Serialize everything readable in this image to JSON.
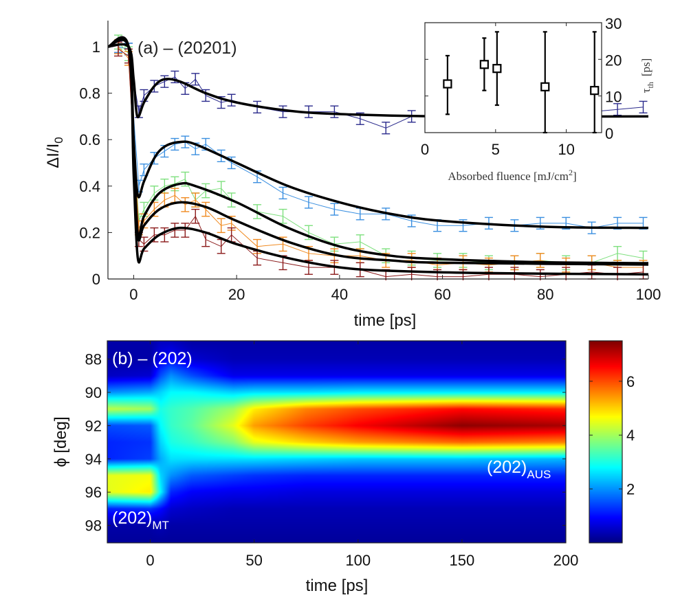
{
  "chart_data": [
    {
      "type": "line",
      "panel_label": "(a) – (20201)",
      "xlabel": "time [ps]",
      "ylabel": "ΔI/I",
      "ylabel_sub": "0",
      "xlim": [
        -5,
        100
      ],
      "ylim": [
        0,
        1.1
      ],
      "xticks": [
        0,
        20,
        40,
        60,
        80,
        100
      ],
      "yticks": [
        0,
        0.2,
        0.4,
        0.6,
        0.8,
        1
      ],
      "grid": false,
      "x": [
        -3,
        -1,
        1,
        2,
        4,
        6,
        8,
        10,
        12,
        14,
        17,
        19,
        24,
        29,
        34,
        39,
        44,
        49,
        54,
        59,
        64,
        69,
        74,
        79,
        84,
        89,
        94,
        99
      ],
      "series": [
        {
          "color": "#2a2a8c",
          "error": 0.025,
          "values": [
            1.0,
            0.99,
            0.72,
            0.79,
            0.83,
            0.85,
            0.87,
            0.82,
            0.86,
            0.79,
            0.76,
            0.77,
            0.74,
            0.72,
            0.72,
            0.72,
            0.69,
            0.65,
            0.7,
            0.7,
            0.71,
            0.7,
            0.71,
            0.72,
            0.7,
            0.72,
            0.73,
            0.74
          ],
          "fit": [
            [
              -5,
              1
            ],
            [
              -1,
              1
            ],
            [
              0,
              0.86
            ],
            [
              0.7,
              0.7
            ],
            [
              2,
              0.76
            ],
            [
              4,
              0.83
            ],
            [
              6,
              0.86
            ],
            [
              9,
              0.85
            ],
            [
              14,
              0.8
            ],
            [
              20,
              0.76
            ],
            [
              30,
              0.725
            ],
            [
              40,
              0.71
            ],
            [
              60,
              0.7
            ],
            [
              100,
              0.7
            ]
          ]
        },
        {
          "color": "#3a8fe0",
          "error": 0.025,
          "values": [
            1.0,
            0.99,
            0.4,
            0.47,
            0.52,
            0.55,
            0.58,
            0.59,
            0.56,
            0.58,
            0.53,
            0.5,
            0.44,
            0.37,
            0.33,
            0.3,
            0.28,
            0.28,
            0.25,
            0.23,
            0.23,
            0.24,
            0.23,
            0.24,
            0.24,
            0.22,
            0.24,
            0.24
          ],
          "fit": [
            [
              -5,
              1
            ],
            [
              -1,
              1
            ],
            [
              0,
              0.6
            ],
            [
              0.8,
              0.36
            ],
            [
              2,
              0.42
            ],
            [
              4,
              0.52
            ],
            [
              6,
              0.57
            ],
            [
              9,
              0.59
            ],
            [
              12,
              0.58
            ],
            [
              20,
              0.5
            ],
            [
              30,
              0.4
            ],
            [
              40,
              0.33
            ],
            [
              50,
              0.28
            ],
            [
              60,
              0.25
            ],
            [
              80,
              0.225
            ],
            [
              100,
              0.22
            ]
          ]
        },
        {
          "color": "#7ee07e",
          "error": 0.03,
          "values": [
            1.02,
            0.97,
            0.25,
            0.3,
            0.37,
            0.4,
            0.41,
            0.43,
            0.34,
            0.38,
            0.39,
            0.34,
            0.29,
            0.27,
            0.2,
            0.15,
            0.16,
            0.1,
            0.09,
            0.08,
            0.08,
            0.07,
            0.07,
            0.08,
            0.07,
            0.07,
            0.11,
            0.09
          ],
          "fit": [
            [
              -5,
              1
            ],
            [
              -1,
              1
            ],
            [
              0,
              0.55
            ],
            [
              0.8,
              0.19
            ],
            [
              2,
              0.27
            ],
            [
              5,
              0.37
            ],
            [
              9,
              0.41
            ],
            [
              12,
              0.4
            ],
            [
              20,
              0.33
            ],
            [
              30,
              0.22
            ],
            [
              40,
              0.14
            ],
            [
              50,
              0.1
            ],
            [
              60,
              0.085
            ],
            [
              80,
              0.072
            ],
            [
              100,
              0.068
            ]
          ]
        },
        {
          "color": "#f08a20",
          "error": 0.03,
          "values": [
            1.0,
            0.95,
            0.22,
            0.25,
            0.3,
            0.34,
            0.36,
            0.32,
            0.34,
            0.3,
            0.23,
            0.24,
            0.14,
            0.15,
            0.11,
            0.1,
            0.1,
            0.08,
            0.08,
            0.06,
            0.07,
            0.06,
            0.07,
            0.08,
            0.06,
            0.07,
            0.05,
            0.05
          ],
          "fit": [
            [
              -5,
              1
            ],
            [
              -1,
              1
            ],
            [
              0,
              0.5
            ],
            [
              0.8,
              0.18
            ],
            [
              2,
              0.23
            ],
            [
              5,
              0.3
            ],
            [
              9,
              0.33
            ],
            [
              14,
              0.31
            ],
            [
              20,
              0.25
            ],
            [
              30,
              0.16
            ],
            [
              40,
              0.1
            ],
            [
              50,
              0.08
            ],
            [
              60,
              0.07
            ],
            [
              100,
              0.062
            ]
          ]
        },
        {
          "color": "#8b1a1a",
          "error": 0.03,
          "values": [
            0.99,
            0.96,
            0.17,
            0.15,
            0.19,
            0.19,
            0.21,
            0.21,
            0.27,
            0.17,
            0.14,
            0.19,
            0.09,
            0.07,
            0.05,
            0.05,
            0.04,
            0.01,
            0.02,
            0.01,
            0.01,
            0.02,
            0.02,
            0.01,
            0.02,
            0.03,
            0.02,
            0.03
          ],
          "fit": [
            [
              -5,
              1
            ],
            [
              -1,
              1
            ],
            [
              0,
              0.45
            ],
            [
              0.8,
              0.09
            ],
            [
              2,
              0.13
            ],
            [
              5,
              0.19
            ],
            [
              9,
              0.22
            ],
            [
              14,
              0.2
            ],
            [
              20,
              0.15
            ],
            [
              30,
              0.09
            ],
            [
              40,
              0.05
            ],
            [
              50,
              0.035
            ],
            [
              70,
              0.025
            ],
            [
              100,
              0.02
            ]
          ]
        }
      ],
      "fit_color": "#000000"
    },
    {
      "type": "scatter",
      "role": "inset",
      "xlabel": "Absorbed fluence  [mJ/cm",
      "xlabel_sup": "2",
      "xlabel_end": "]",
      "ylabel": "τ",
      "ylabel_sub": "th",
      "ylabel_unit": "[ps]",
      "xlim": [
        0,
        12.5
      ],
      "ylim": [
        0,
        30
      ],
      "xticks": [
        0,
        5,
        10
      ],
      "yticks": [
        0,
        10,
        20,
        30
      ],
      "marker": "square",
      "points": [
        {
          "x": 1.6,
          "y": 13.3,
          "low": 5,
          "high": 21
        },
        {
          "x": 4.2,
          "y": 18.6,
          "low": 11.5,
          "high": 25.8
        },
        {
          "x": 5.1,
          "y": 17.5,
          "low": 7.5,
          "high": 27.5
        },
        {
          "x": 8.5,
          "y": 12.5,
          "low": 0,
          "high": 27.5
        },
        {
          "x": 12.0,
          "y": 11.5,
          "low": 0,
          "high": 27.5
        }
      ]
    },
    {
      "type": "heatmap",
      "panel_label": "(b) – (202)",
      "xlabel": "time [ps]",
      "ylabel": "ϕ [deg]",
      "xlim": [
        -20.7,
        200
      ],
      "ylim": [
        86.9,
        99.05
      ],
      "xticks": [
        0,
        50,
        100,
        150,
        200
      ],
      "yticks": [
        88,
        90,
        92,
        94,
        96,
        98
      ],
      "colormap": "jet",
      "colorbar": {
        "range": [
          0,
          7.5
        ],
        "ticks": [
          2,
          4,
          6
        ]
      },
      "annotations": [
        {
          "text": "(202)",
          "sub": "MT"
        },
        {
          "text": "(202)",
          "sub": "AUS"
        }
      ],
      "times": [
        -20,
        0,
        5,
        10,
        20,
        40,
        50,
        75,
        100,
        150,
        200
      ],
      "phi": [
        87,
        88,
        89,
        90,
        91,
        92,
        93,
        94,
        95,
        96,
        97,
        98,
        99
      ],
      "values": [
        [
          0.3,
          0.3,
          0.5,
          2.0,
          4.2,
          1.5,
          1.2,
          1.2,
          4.5,
          4.5,
          1.2,
          0.3,
          0.2
        ],
        [
          0.3,
          0.3,
          0.6,
          2.2,
          4.0,
          1.6,
          1.3,
          1.4,
          4.6,
          4.8,
          1.3,
          0.3,
          0.2
        ],
        [
          0.5,
          0.8,
          1.5,
          2.5,
          3.0,
          2.8,
          2.5,
          2.2,
          2.5,
          2.8,
          1.0,
          0.4,
          0.2
        ],
        [
          0.5,
          1.0,
          2.0,
          2.8,
          3.2,
          3.2,
          3.0,
          2.6,
          2.0,
          1.2,
          0.6,
          0.3,
          0.2
        ],
        [
          0.3,
          0.6,
          1.5,
          2.8,
          3.4,
          3.5,
          3.2,
          2.6,
          1.6,
          0.9,
          0.5,
          0.3,
          0.2
        ],
        [
          0.3,
          0.4,
          0.8,
          2.5,
          4.0,
          4.5,
          3.8,
          2.6,
          1.4,
          0.8,
          0.4,
          0.3,
          0.2
        ],
        [
          0.3,
          0.4,
          0.8,
          2.6,
          4.8,
          5.4,
          4.5,
          2.6,
          1.3,
          0.8,
          0.4,
          0.3,
          0.2
        ],
        [
          0.3,
          0.4,
          0.8,
          2.6,
          5.6,
          6.1,
          5.0,
          2.5,
          1.2,
          0.7,
          0.4,
          0.3,
          0.2
        ],
        [
          0.3,
          0.4,
          0.8,
          2.7,
          6.0,
          6.6,
          5.4,
          2.4,
          1.2,
          0.7,
          0.4,
          0.3,
          0.2
        ],
        [
          0.3,
          0.4,
          0.8,
          2.7,
          6.5,
          7.4,
          5.8,
          2.4,
          1.2,
          0.7,
          0.4,
          0.3,
          0.2
        ],
        [
          0.3,
          0.4,
          0.8,
          2.7,
          6.3,
          7.2,
          5.6,
          2.3,
          1.2,
          0.7,
          0.4,
          0.3,
          0.2
        ]
      ]
    }
  ]
}
